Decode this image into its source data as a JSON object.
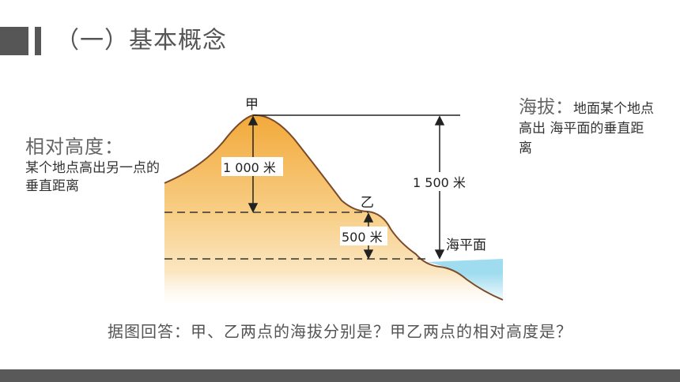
{
  "header": {
    "title": "（一）基本概念"
  },
  "relative_height": {
    "title": "相对高度：",
    "description": "某个地点高出另一点的垂直距离"
  },
  "altitude": {
    "title": "海拔：",
    "description": "地面某个地点高出 海平面的垂直距离"
  },
  "diagram": {
    "point_jia": "甲",
    "point_yi": "乙",
    "label_1000": "1 000 米",
    "label_500": "500 米",
    "label_1500": "1 500 米",
    "sea_level": "海平面",
    "colors": {
      "land_top": "#f2a93a",
      "land_bottom": "#fdf3e2",
      "sea": "#9fdcef",
      "outline": "#7a4a2a"
    }
  },
  "question": "据图回答：甲、乙两点的海拔分别是？甲乙两点的相对高度是？"
}
